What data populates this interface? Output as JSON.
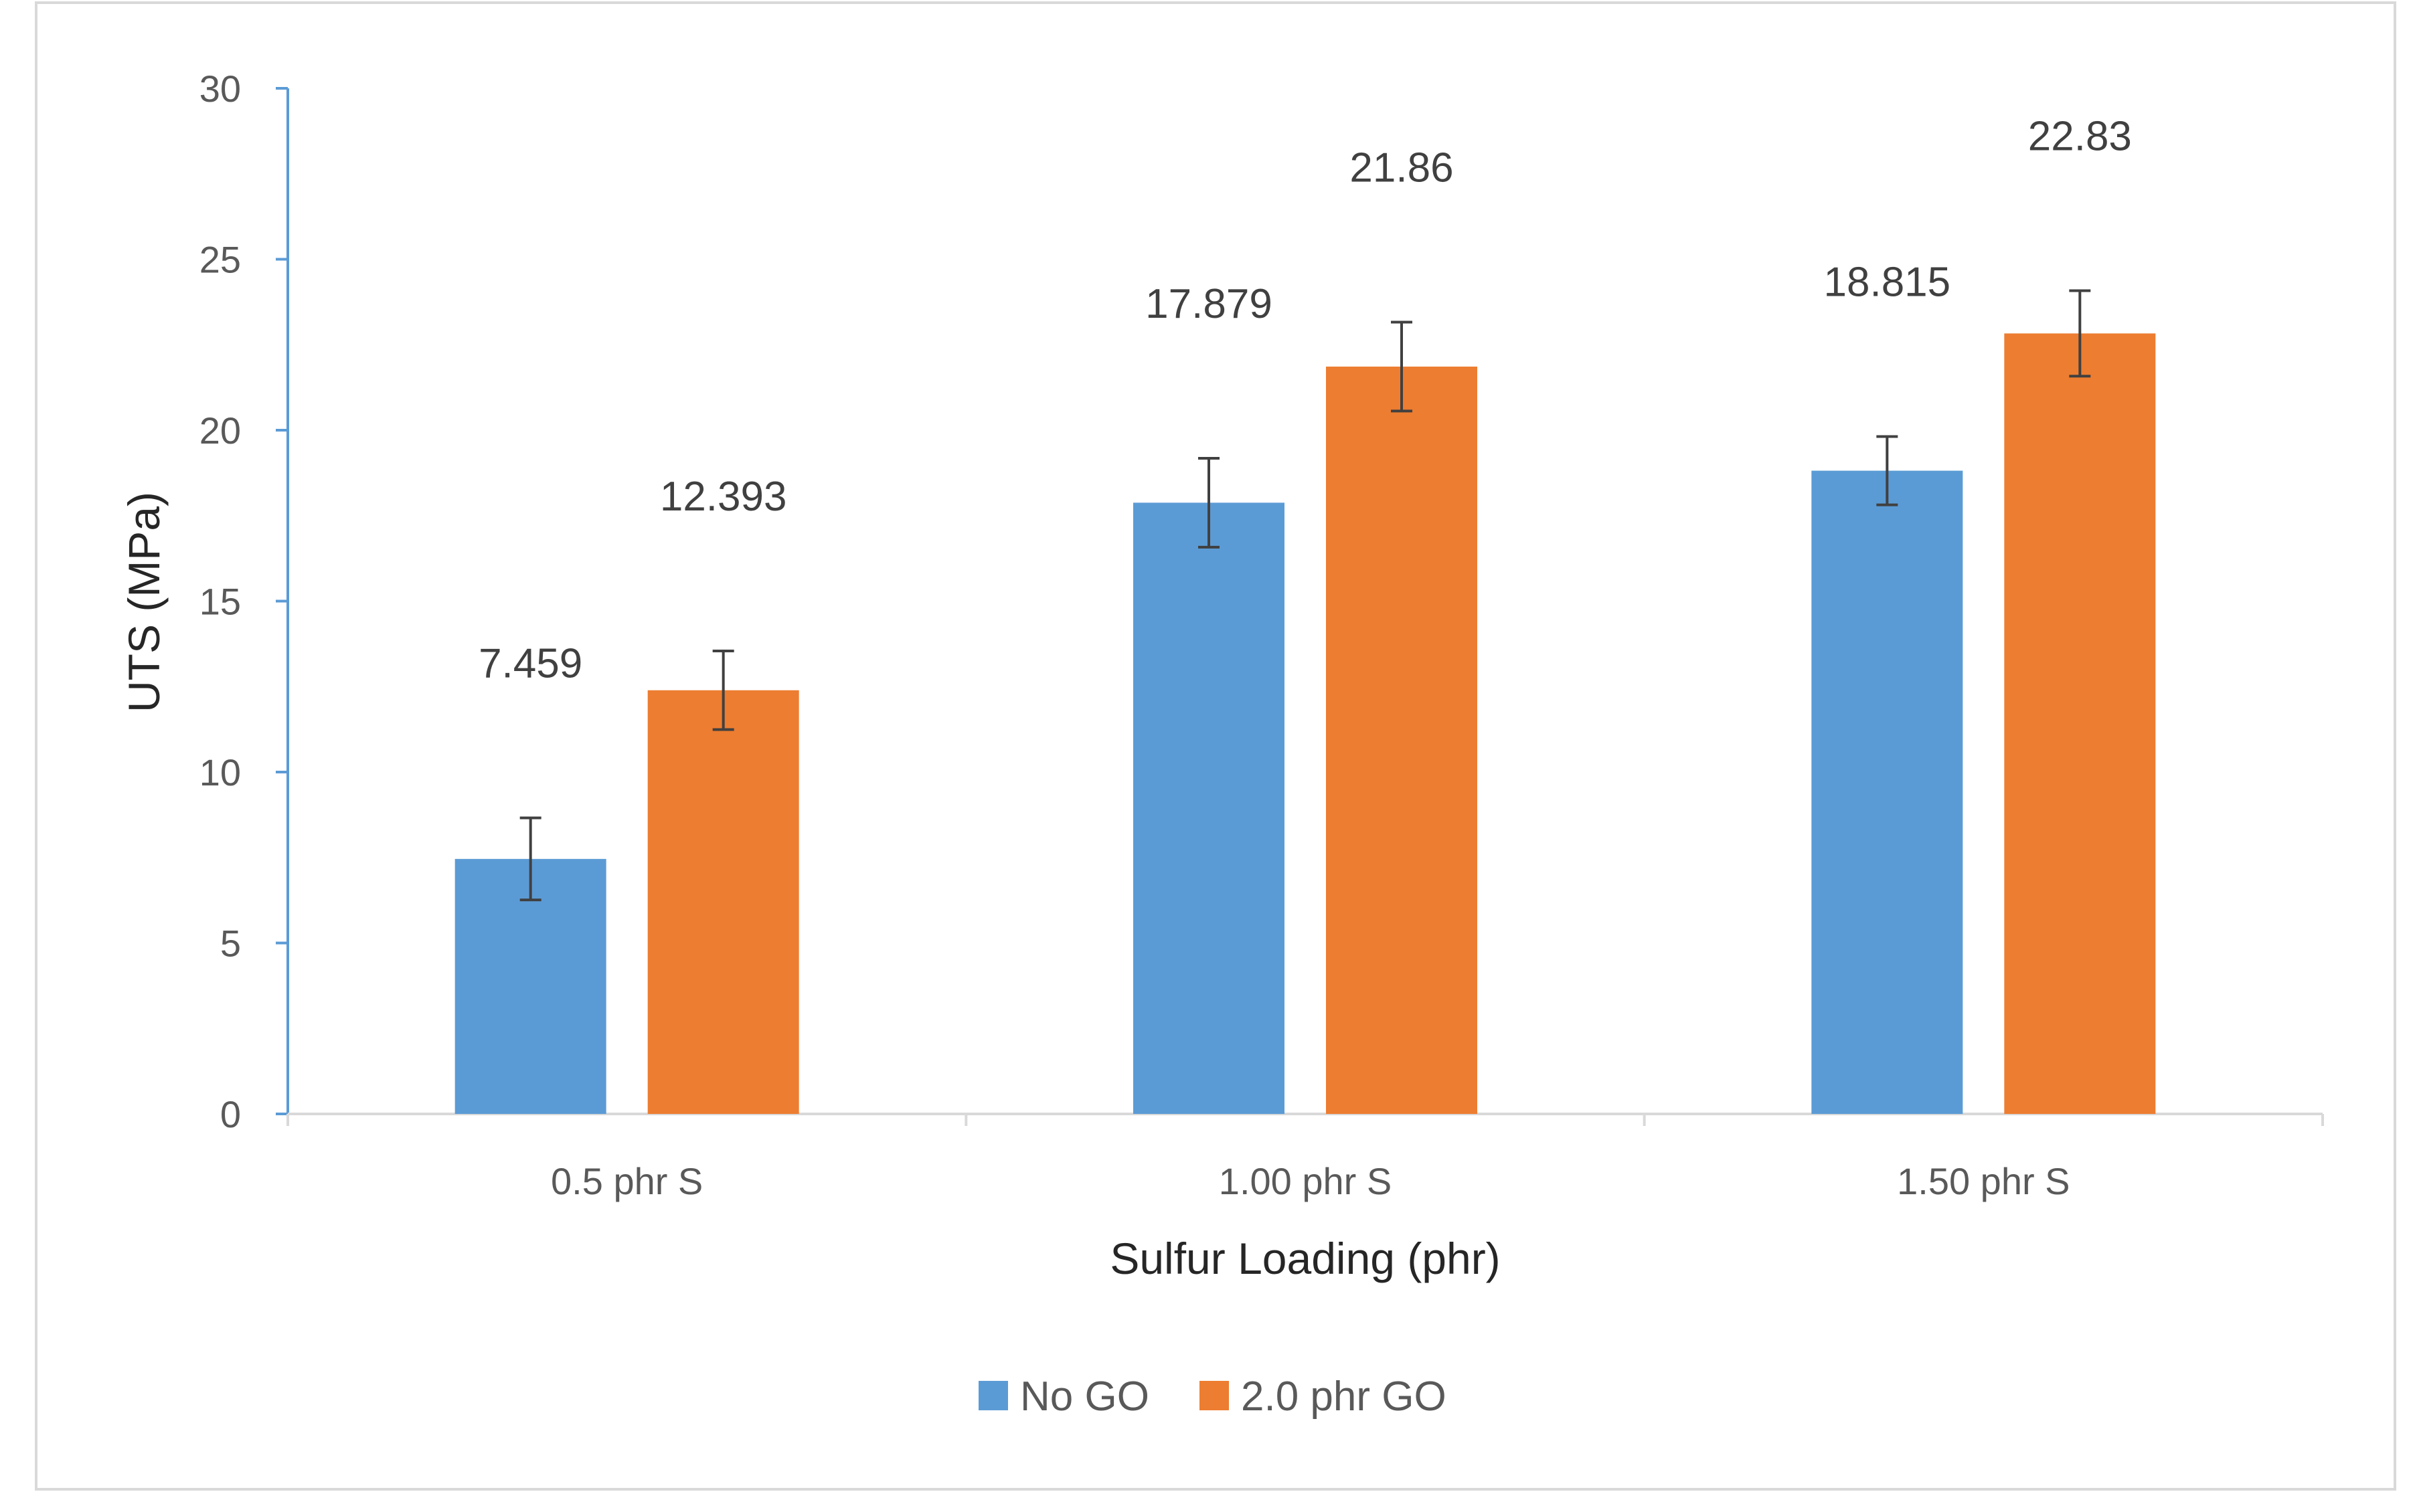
{
  "chart_data": {
    "type": "bar",
    "categories": [
      "0.5 phr S",
      "1.00 phr S",
      "1.50 phr S"
    ],
    "series": [
      {
        "name": "No GO",
        "color": "#5b9bd5",
        "values": [
          7.459,
          17.879,
          18.815
        ],
        "errors": [
          1.2,
          1.3,
          1.0
        ],
        "labels": [
          "7.459",
          "17.879",
          "18.815"
        ]
      },
      {
        "name": "2.0 phr GO",
        "color": "#ed7d31",
        "values": [
          12.393,
          21.86,
          22.83
        ],
        "errors": [
          1.15,
          1.3,
          1.25
        ],
        "labels": [
          "12.393",
          "21.86",
          "22.83"
        ]
      }
    ],
    "title": "",
    "xlabel": "Sulfur Loading (phr)",
    "ylabel": "UTS  (MPa)",
    "ylim": [
      0,
      30
    ],
    "yticks": [
      0,
      5,
      10,
      15,
      20,
      25,
      30
    ],
    "grid": false,
    "legend_position": "bottom",
    "axis_color": "#d9d9d9",
    "y_axis_color": "#5b9bd5",
    "error_bar_color": "#404040"
  }
}
